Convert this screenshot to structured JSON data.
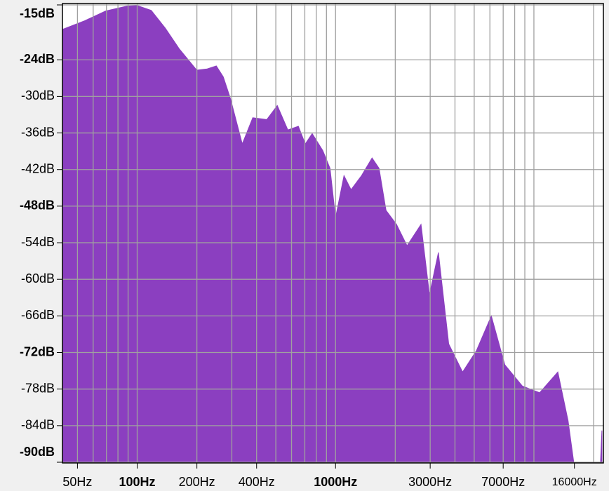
{
  "chart_data": {
    "type": "area",
    "xscale": "log",
    "color": "#8b3fc0",
    "grid": true,
    "x": [
      42.2,
      54.4,
      69.3,
      88.5,
      100,
      117.7,
      138.5,
      162.9,
      199.8,
      225.4,
      250.6,
      271.7,
      294.9,
      338.7,
      382.6,
      450.2,
      508.6,
      574.8,
      649.4,
      703.7,
      762.6,
      862.6,
      938,
      1000,
      1103,
      1197,
      1352,
      1528,
      1657,
      1797,
      2030,
      2293,
      2697,
      2975,
      3300,
      3720,
      4370,
      5130,
      6100,
      7130,
      8740,
      10680,
      13200,
      14870,
      15880,
      17530,
      21660,
      22020
    ],
    "values": [
      -19.0,
      -17.6,
      -16.0,
      -15.2,
      -15.1,
      -15.9,
      -18.8,
      -22.2,
      -25.7,
      -25.5,
      -25.0,
      -26.8,
      -30.3,
      -37.8,
      -33.5,
      -33.8,
      -31.5,
      -35.5,
      -34.9,
      -37.8,
      -36.1,
      -38.9,
      -41.8,
      -49.9,
      -43.0,
      -45.3,
      -43.0,
      -40.1,
      -41.8,
      -48.7,
      -51.0,
      -54.5,
      -51.0,
      -62.5,
      -55.6,
      -70.6,
      -75.2,
      -71.7,
      -66.0,
      -74.0,
      -77.5,
      -78.6,
      -75.2,
      -83.2,
      -90,
      -90,
      -90,
      -84.8
    ],
    "xlim": [
      42,
      22400
    ],
    "ylim": [
      -90,
      -15
    ],
    "xticks": [
      {
        "value": 50,
        "label": "50Hz"
      },
      {
        "value": 100,
        "label": "100Hz",
        "major": true
      },
      {
        "value": 200,
        "label": "200Hz"
      },
      {
        "value": 400,
        "label": "400Hz"
      },
      {
        "value": 1000,
        "label": "1000Hz",
        "major": true
      },
      {
        "value": 3000,
        "label": "3000Hz"
      },
      {
        "value": 7000,
        "label": "7000Hz"
      },
      {
        "value": 16000,
        "label": "16000Hz"
      }
    ],
    "xgrid": [
      50,
      60,
      70,
      80,
      90,
      100,
      200,
      300,
      400,
      500,
      600,
      700,
      800,
      900,
      1000,
      2000,
      3000,
      4000,
      5000,
      6000,
      7000,
      8000,
      9000,
      10000,
      20000
    ],
    "yticks": [
      {
        "value": -15,
        "label": "-15dB",
        "major": true
      },
      {
        "value": -24,
        "label": "-24dB",
        "major": true
      },
      {
        "value": -30,
        "label": "-30dB"
      },
      {
        "value": -36,
        "label": "-36dB"
      },
      {
        "value": -42,
        "label": "-42dB"
      },
      {
        "value": -48,
        "label": "-48dB",
        "major": true
      },
      {
        "value": -54,
        "label": "-54dB"
      },
      {
        "value": -60,
        "label": "-60dB"
      },
      {
        "value": -66,
        "label": "-66dB"
      },
      {
        "value": -72,
        "label": "-72dB",
        "major": true
      },
      {
        "value": -78,
        "label": "-78dB"
      },
      {
        "value": -84,
        "label": "-84dB"
      },
      {
        "value": -90,
        "label": "-90dB",
        "major": true
      }
    ]
  }
}
